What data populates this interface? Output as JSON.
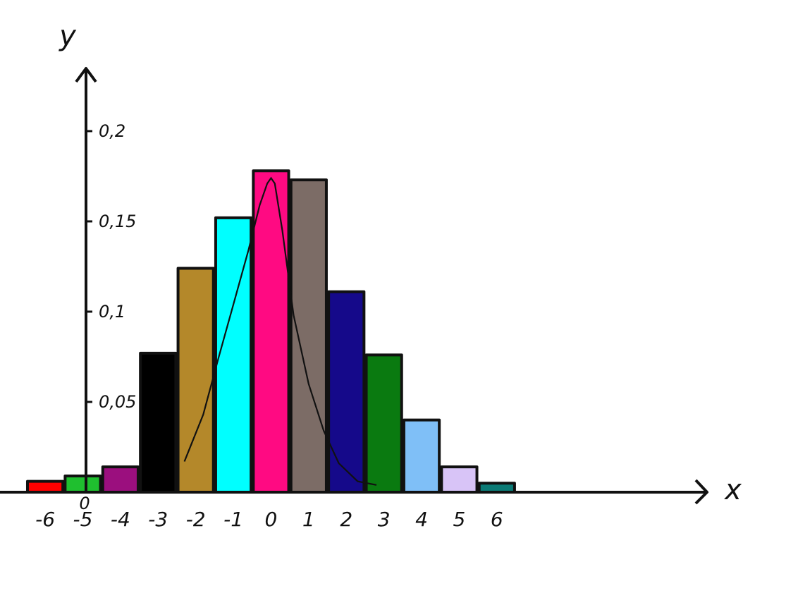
{
  "chart_data": {
    "type": "bar",
    "xlabel": "x",
    "ylabel": "y",
    "origin_label": "0",
    "x_tick_labels": [
      "-6",
      "-5",
      "-4",
      "-3",
      "-2",
      "-1",
      "0",
      "1",
      "2",
      "3",
      "4",
      "5",
      "6"
    ],
    "y_ticks": [
      {
        "value": 0.05,
        "label": "0,05"
      },
      {
        "value": 0.1,
        "label": "0,1"
      },
      {
        "value": 0.15,
        "label": "0,15"
      },
      {
        "value": 0.2,
        "label": "0,2"
      }
    ],
    "xlim": [
      -7.2,
      14.0
    ],
    "ylim": [
      0,
      0.257
    ],
    "grid": false,
    "legend": "none",
    "bars": [
      {
        "x": -6,
        "value": 0.006,
        "color": "#ff0000"
      },
      {
        "x": -5,
        "value": 0.009,
        "color": "#1fbf2f"
      },
      {
        "x": -4,
        "value": 0.014,
        "color": "#9b0f7e"
      },
      {
        "x": -3,
        "value": 0.077,
        "color": "#000000"
      },
      {
        "x": -2,
        "value": 0.124,
        "color": "#b4882a"
      },
      {
        "x": -1,
        "value": 0.152,
        "color": "#00ffff"
      },
      {
        "x": 0,
        "value": 0.178,
        "color": "#ff0a82"
      },
      {
        "x": 1,
        "value": 0.173,
        "color": "#7c6c66"
      },
      {
        "x": 2,
        "value": 0.111,
        "color": "#15098a"
      },
      {
        "x": 3,
        "value": 0.076,
        "color": "#0a7a10"
      },
      {
        "x": 4,
        "value": 0.04,
        "color": "#7fbff7"
      },
      {
        "x": 5,
        "value": 0.014,
        "color": "#d8c4f7"
      },
      {
        "x": 6,
        "value": 0.005,
        "color": "#0b7b76"
      }
    ],
    "curve": {
      "x": [
        -2.3,
        -1.8,
        -1.4,
        -1.0,
        -0.6,
        -0.3,
        -0.1,
        0.0,
        0.1,
        0.3,
        0.6,
        1.0,
        1.4,
        1.8,
        2.3,
        2.8
      ],
      "y": [
        0.017,
        0.043,
        0.074,
        0.104,
        0.134,
        0.159,
        0.171,
        0.174,
        0.171,
        0.145,
        0.098,
        0.06,
        0.034,
        0.016,
        0.006,
        0.004
      ]
    }
  }
}
